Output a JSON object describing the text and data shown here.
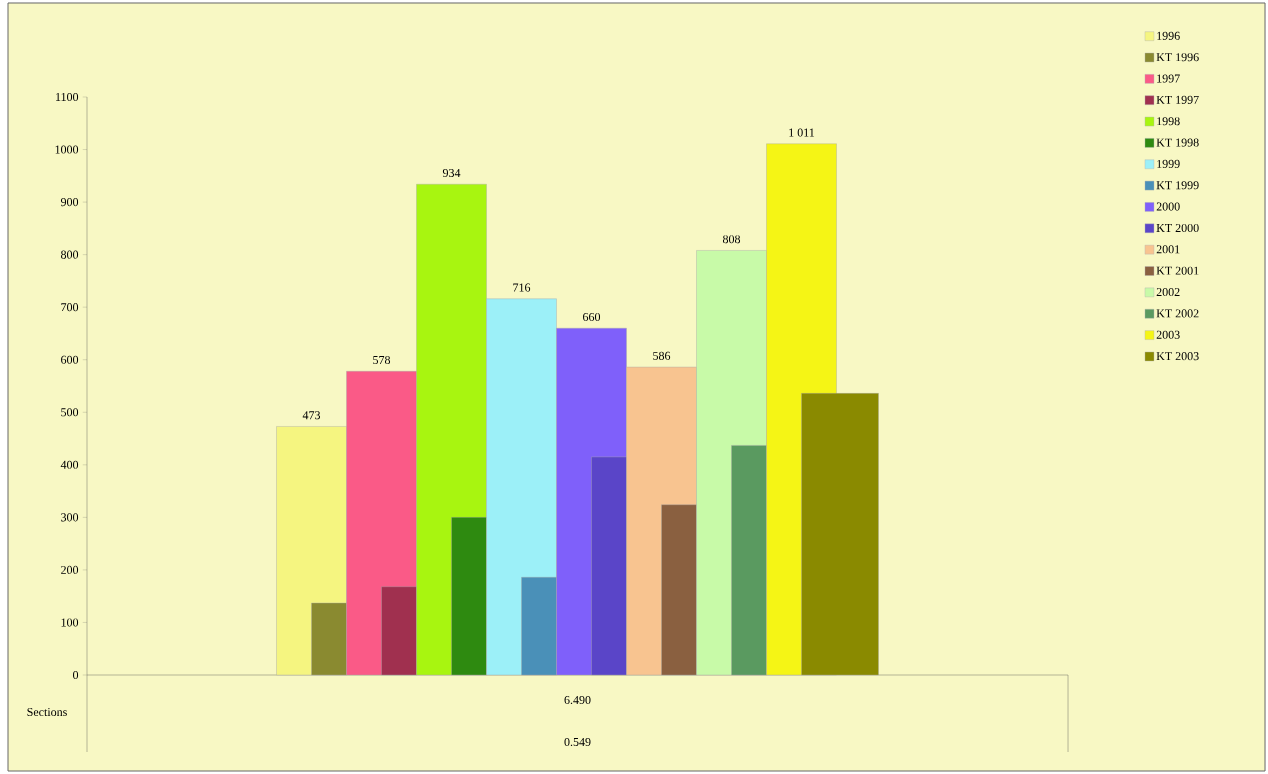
{
  "chart_data": {
    "type": "bar",
    "categories": [
      null
    ],
    "series": [
      {
        "name": "1996",
        "color": "#f5f580",
        "values": [
          473
        ],
        "value_labels": [
          "473"
        ]
      },
      {
        "name": "KT 1996",
        "color": "#8a8a30",
        "values": [
          137
        ]
      },
      {
        "name": "1997",
        "color": "#fa5a87",
        "values": [
          578
        ],
        "value_labels": [
          "578"
        ]
      },
      {
        "name": "KT 1997",
        "color": "#a0304f",
        "values": [
          168
        ]
      },
      {
        "name": "1998",
        "color": "#a8f510",
        "values": [
          934
        ],
        "value_labels": [
          "934"
        ]
      },
      {
        "name": "KT 1998",
        "color": "#2e8a10",
        "values": [
          300
        ]
      },
      {
        "name": "1999",
        "color": "#9cf0f8",
        "values": [
          716
        ],
        "value_labels": [
          "716"
        ]
      },
      {
        "name": "KT 1999",
        "color": "#4a90b8",
        "values": [
          186
        ]
      },
      {
        "name": "2000",
        "color": "#7f60fa",
        "values": [
          660
        ],
        "value_labels": [
          "660"
        ]
      },
      {
        "name": "KT 2000",
        "color": "#5a45c8",
        "values": [
          415
        ]
      },
      {
        "name": "2001",
        "color": "#f8c490",
        "values": [
          586
        ],
        "value_labels": [
          "586"
        ]
      },
      {
        "name": "KT 2001",
        "color": "#8a6040",
        "values": [
          324
        ]
      },
      {
        "name": "2002",
        "color": "#c8faa8",
        "values": [
          808
        ],
        "value_labels": [
          "808"
        ]
      },
      {
        "name": "KT 2002",
        "color": "#5a9a60",
        "values": [
          437
        ]
      },
      {
        "name": "2003",
        "color": "#f5f515",
        "values": [
          1011
        ],
        "value_labels": [
          "1 011"
        ]
      },
      {
        "name": "KT 2003",
        "color": "#8a8a00",
        "values": [
          536
        ]
      }
    ],
    "ylim": [
      0,
      1100
    ],
    "yticks": [
      0,
      100,
      200,
      300,
      400,
      500,
      600,
      700,
      800,
      900,
      1000,
      1100
    ],
    "legend": "right",
    "annotations": [
      "Sections",
      "6.490",
      "0.549"
    ]
  }
}
